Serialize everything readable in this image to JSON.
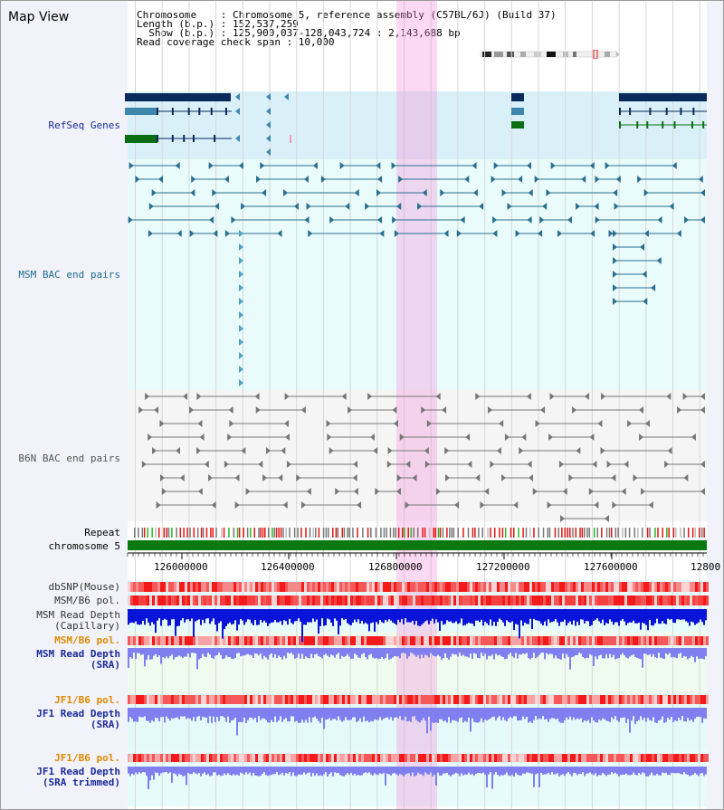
{
  "header": {
    "view_title": "Map View",
    "info_lines": [
      "Chromosome    : Chromosome 5, reference assembly (C57BL/6J) (Build 37)",
      "Length (b.p.) : 152,537,259",
      "  Show (b.p.) : 125,900,037-128,043,724 : 2,143,688 bp",
      "Read coverage check span : 10,000"
    ]
  },
  "axis": {
    "ticks": [
      "126000000",
      "126400000",
      "126800000",
      "127200000",
      "127600000",
      "12800"
    ]
  },
  "tracks": {
    "refseq": "RefSeq Genes",
    "msm_bac": "MSM BAC end pairs",
    "b6n_bac": "B6N BAC end pairs",
    "repeat": "Repeat",
    "chromosome": "chromosome 5",
    "dbsnp": "dbSNP(Mouse)",
    "msm_b6_pol_1": "MSM/B6 pol.",
    "msm_depth_cap_1": "MSM Read Depth",
    "msm_depth_cap_2": "(Capillary)",
    "msm_b6_pol_2": "MSM/B6 pol.",
    "msm_depth_sra_1": "MSM Read Depth",
    "msm_depth_sra_2": "(SRA)",
    "jf1_pol_1": "JF1/B6 pol.",
    "jf1_depth_1": "JF1 Read Depth",
    "jf1_depth_2": "(SRA)",
    "jf1_pol_2": "JF1/B6 pol.",
    "jf1_depth_trim_1": "JF1 Read Depth",
    "jf1_depth_trim_2": "(SRA trimmed)"
  },
  "colors": {
    "refseq_bg": "#daf0f8",
    "gene_dark": "#0b2a5c",
    "gene_teal": "#3f86ad",
    "gene_green": "#0a6e14",
    "msm_bg": "#e9fbfb",
    "msm_feature": "#2a6f8f",
    "b6n_feature": "#777777",
    "chromosome_bar": "#0a7a10",
    "highlight": "#f58cd7",
    "label_navy": "#1a2a99",
    "label_teal": "#1e6e8e",
    "label_orange": "#e08a00",
    "depth_dark": "#0a14d8",
    "depth_light": "#7f7ff0"
  }
}
